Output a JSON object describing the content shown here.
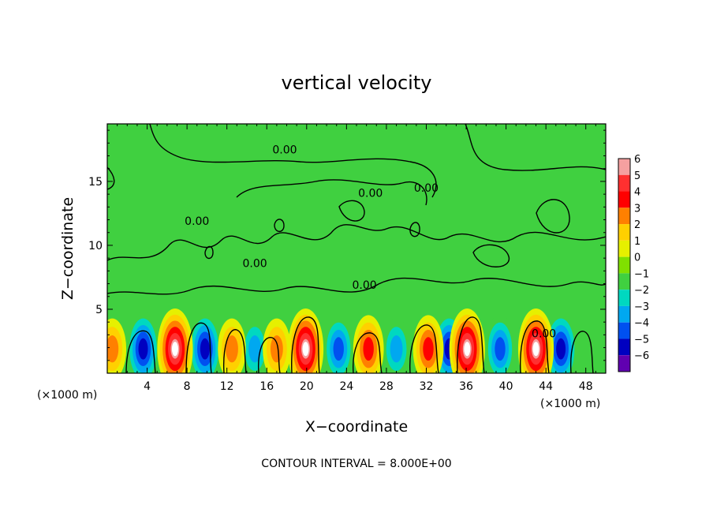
{
  "chart_data": {
    "type": "heatmap",
    "title": "vertical velocity",
    "xlabel": "X−coordinate",
    "ylabel": "Z−coordinate",
    "x_unit": "(×1000 m)",
    "y_unit": "(×1000 m)",
    "xlim": [
      0,
      50
    ],
    "ylim": [
      0,
      19.5
    ],
    "x_ticks": [
      "4",
      "8",
      "12",
      "16",
      "20",
      "24",
      "28",
      "32",
      "36",
      "40",
      "44",
      "48"
    ],
    "y_ticks": [
      "5",
      "10",
      "15"
    ],
    "x_tick_values": [
      4,
      8,
      12,
      16,
      20,
      24,
      28,
      32,
      36,
      40,
      44,
      48
    ],
    "y_tick_values": [
      5,
      10,
      15
    ],
    "colorbar": {
      "labels": [
        "6",
        "5",
        "4",
        "3",
        "2",
        "1",
        "0",
        "−1",
        "−2",
        "−3",
        "−4",
        "−5",
        "−6"
      ],
      "values": [
        6,
        5,
        4,
        3,
        2,
        1,
        0,
        -1,
        -2,
        -3,
        -4,
        -5,
        -6
      ],
      "colors": [
        "#f5a0a0",
        "#ff3030",
        "#ff0000",
        "#ff8000",
        "#ffd000",
        "#e6f000",
        "#80e000",
        "#40d040",
        "#00d8c0",
        "#00a8f0",
        "#0050f0",
        "#0000c0",
        "#6000b0"
      ]
    },
    "contour_labels": [
      {
        "text": "0.00",
        "x": 17.8,
        "z": 17.2
      },
      {
        "text": "0.00",
        "x": 26.4,
        "z": 13.8
      },
      {
        "text": "0.00",
        "x": 32.0,
        "z": 14.2
      },
      {
        "text": "0.00",
        "x": 9.0,
        "z": 11.6
      },
      {
        "text": "0.00",
        "x": 14.8,
        "z": 8.3
      },
      {
        "text": "0.00",
        "x": 25.8,
        "z": 6.6
      },
      {
        "text": "0.00",
        "x": 43.8,
        "z": 2.8
      }
    ],
    "cells_upward_strong": [
      {
        "x": 6.8,
        "value": 6
      },
      {
        "x": 19.9,
        "value": 6
      },
      {
        "x": 36.1,
        "value": 6
      },
      {
        "x": 43.0,
        "value": 6
      },
      {
        "x": 26.2,
        "value": 4
      },
      {
        "x": 32.2,
        "value": 4
      },
      {
        "x": 17.0,
        "value": 3
      },
      {
        "x": 12.5,
        "value": 3
      },
      {
        "x": 0.5,
        "value": 3
      }
    ],
    "cells_downward_strong": [
      {
        "x": 3.6,
        "value": -5
      },
      {
        "x": 9.8,
        "value": -5
      },
      {
        "x": 34.3,
        "value": -5
      },
      {
        "x": 45.5,
        "value": -5
      },
      {
        "x": 23.2,
        "value": -4
      },
      {
        "x": 29.0,
        "value": -3
      },
      {
        "x": 39.4,
        "value": -4
      },
      {
        "x": 14.8,
        "value": -3
      }
    ],
    "contour_interval_text": "CONTOUR INTERVAL = 8.000E+00"
  }
}
